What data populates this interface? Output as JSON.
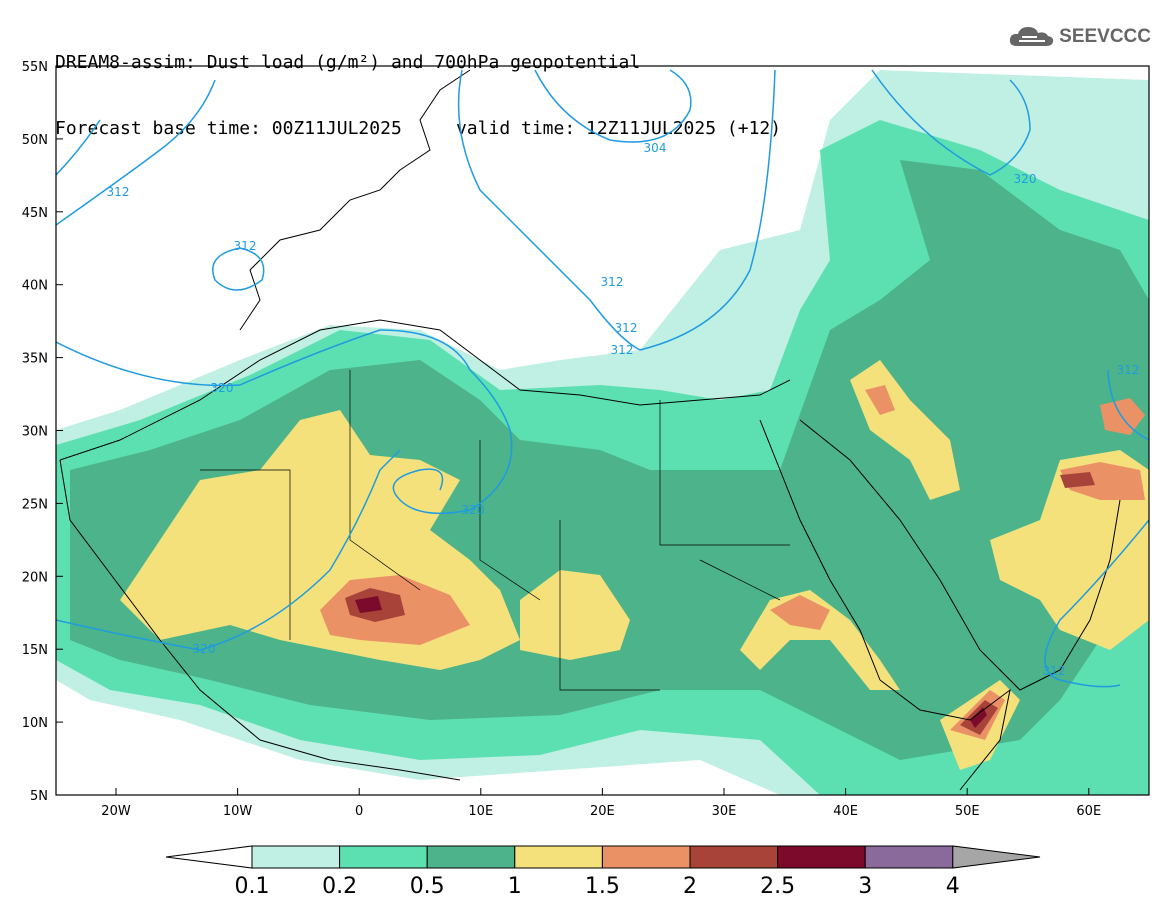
{
  "header": {
    "line1": "DREAM8-assim: Dust load (g/m²) and 700hPa geopotential",
    "line2": "Forecast base time: 00Z11JUL2025     valid time: 12Z11JUL2025 (+12)"
  },
  "logo": {
    "text": "SEEVCCC",
    "icon": "cloud-icon"
  },
  "axes": {
    "lon_labels": [
      "20W",
      "10W",
      "0",
      "10E",
      "20E",
      "30E",
      "40E",
      "50E",
      "60E"
    ],
    "lat_labels": [
      "55N",
      "50N",
      "45N",
      "40N",
      "35N",
      "30N",
      "25N",
      "20N",
      "15N",
      "10N",
      "5N"
    ]
  },
  "colorbar": {
    "ticks": [
      "0.1",
      "0.2",
      "0.5",
      "1",
      "1.5",
      "2",
      "2.5",
      "3",
      "4"
    ],
    "colors": [
      "#bff0e3",
      "#5de0b1",
      "#4cb38a",
      "#f4e17b",
      "#ea9266",
      "#a8433a",
      "#7c0a2b",
      "#8a6a9a",
      "#a6a6a6"
    ]
  },
  "contour_labels": [
    "304",
    "312",
    "312",
    "320",
    "320",
    "312",
    "312",
    "312",
    "320",
    "320",
    "312",
    "312"
  ]
}
